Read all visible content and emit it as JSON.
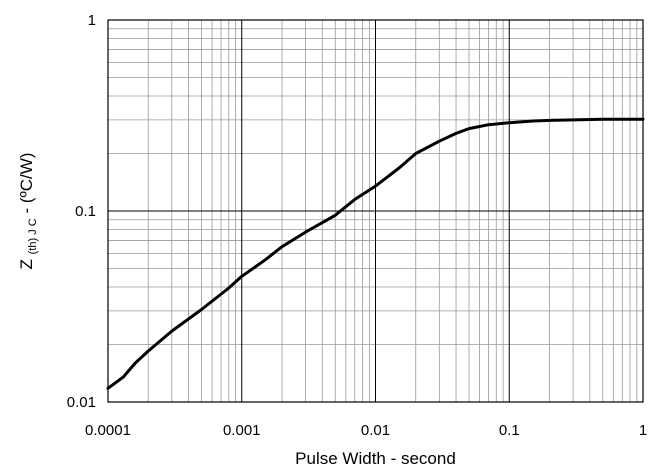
{
  "chart_data": {
    "type": "line",
    "xscale": "log",
    "yscale": "log",
    "xlim": [
      0.0001,
      1
    ],
    "ylim": [
      0.01,
      1
    ],
    "grid": true,
    "xlabel": "Pulse Width - second",
    "ylabel_main": "Z",
    "ylabel_sub": "(th) J C",
    "ylabel_unit": " - (ºC/W)",
    "xticks": [
      {
        "value": 0.0001,
        "label": "0.0001"
      },
      {
        "value": 0.001,
        "label": "0.001"
      },
      {
        "value": 0.01,
        "label": "0.01"
      },
      {
        "value": 0.1,
        "label": "0.1"
      },
      {
        "value": 1,
        "label": "1"
      }
    ],
    "yticks": [
      {
        "value": 0.01,
        "label": "0.01"
      },
      {
        "value": 0.1,
        "label": "0.1"
      },
      {
        "value": 1,
        "label": "1"
      }
    ],
    "series": [
      {
        "color": "#000000",
        "x": [
          0.0001,
          0.00013,
          0.00016,
          0.0002,
          0.0003,
          0.0005,
          0.0008,
          0.001,
          0.0015,
          0.002,
          0.003,
          0.005,
          0.007,
          0.01,
          0.015,
          0.02,
          0.03,
          0.04,
          0.05,
          0.07,
          0.1,
          0.15,
          0.2,
          0.3,
          0.5,
          1
        ],
        "y": [
          0.0118,
          0.0135,
          0.016,
          0.0185,
          0.0235,
          0.0305,
          0.0395,
          0.0455,
          0.0555,
          0.065,
          0.0775,
          0.095,
          0.115,
          0.135,
          0.168,
          0.2,
          0.232,
          0.255,
          0.27,
          0.283,
          0.29,
          0.296,
          0.298,
          0.3,
          0.302,
          0.302
        ]
      }
    ]
  }
}
